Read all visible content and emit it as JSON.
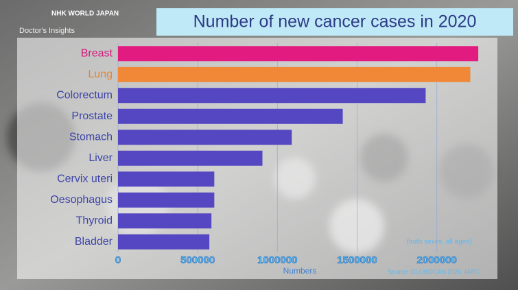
{
  "logo": "NHK WORLD JAPAN",
  "program": "Doctor's Insights",
  "chart_data": {
    "type": "hbar",
    "title": "Number of new cancer cases in 2020",
    "categories": [
      "Breast",
      "Lung",
      "Colorectum",
      "Prostate",
      "Stomach",
      "Liver",
      "Cervix uteri",
      "Oesophagus",
      "Thyroid",
      "Bladder"
    ],
    "values": [
      2260000,
      2210000,
      1930000,
      1410000,
      1090000,
      906000,
      604000,
      604000,
      586000,
      573000
    ],
    "colors": [
      "#e21b80",
      "#f08838",
      "#5547c2",
      "#5547c2",
      "#5547c2",
      "#5547c2",
      "#5547c2",
      "#5547c2",
      "#5547c2",
      "#5547c2"
    ],
    "label_colors": [
      "#d6177a",
      "#e9842f",
      "#3d44a8",
      "#3d44a8",
      "#3d44a8",
      "#3d44a8",
      "#3d44a8",
      "#3d44a8",
      "#3d44a8",
      "#3d44a8"
    ],
    "xlim": [
      0,
      2350000
    ],
    "xticks": [
      0,
      500000,
      1000000,
      1500000,
      2000000
    ],
    "grid": true,
    "x_label": "Numbers",
    "note": "(both sexes, all ages)",
    "source": "Source: GLOBOCAN 2020, IARC"
  }
}
